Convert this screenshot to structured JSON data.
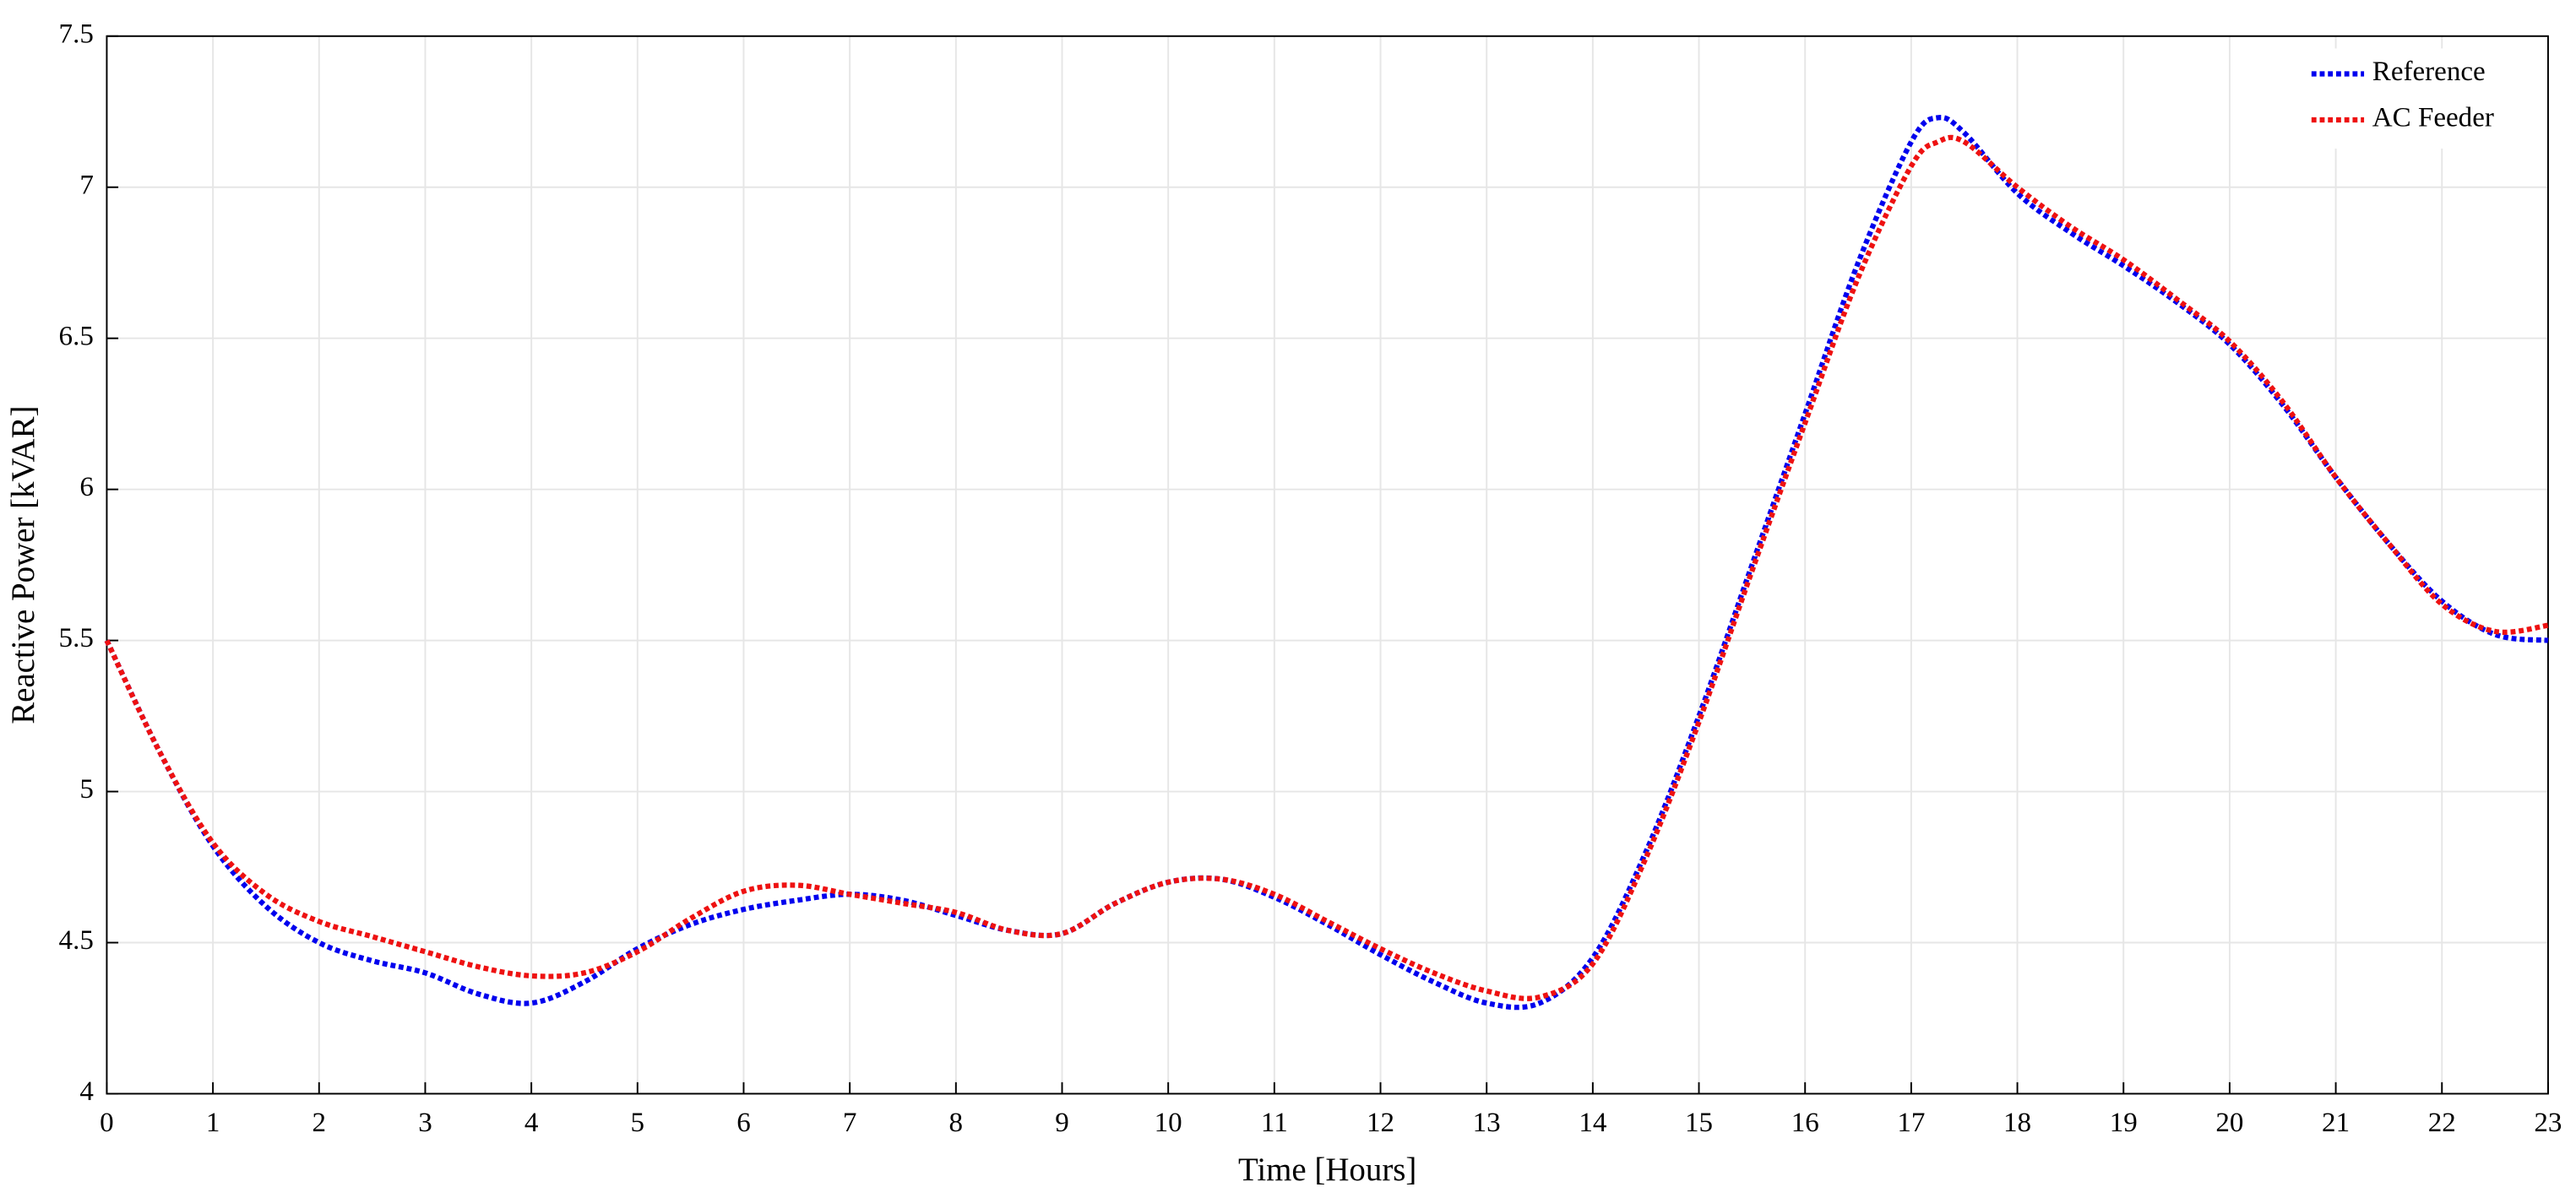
{
  "chart_data": {
    "type": "line",
    "xlabel": "Time [Hours]",
    "ylabel": "Reactive Power [kVAR]",
    "x": [
      0,
      0.5,
      1,
      1.5,
      2,
      2.5,
      3,
      3.5,
      4,
      4.5,
      5,
      5.5,
      6,
      6.5,
      7,
      7.5,
      8,
      8.5,
      9,
      9.5,
      10,
      10.5,
      11,
      11.5,
      12,
      12.5,
      13,
      13.5,
      14,
      14.5,
      15,
      15.5,
      16,
      16.5,
      17,
      17.25,
      17.5,
      18,
      18.5,
      19,
      19.5,
      20,
      20.5,
      21,
      21.5,
      22,
      22.5,
      23
    ],
    "series": [
      {
        "name": "Reference",
        "color": "#0000ee",
        "values": [
          5.5,
          5.13,
          4.82,
          4.62,
          4.5,
          4.44,
          4.4,
          4.33,
          4.3,
          4.37,
          4.48,
          4.56,
          4.61,
          4.64,
          4.66,
          4.64,
          4.59,
          4.54,
          4.53,
          4.63,
          4.7,
          4.71,
          4.65,
          4.56,
          4.46,
          4.37,
          4.3,
          4.3,
          4.45,
          4.8,
          5.25,
          5.75,
          6.25,
          6.75,
          7.15,
          7.23,
          7.18,
          6.98,
          6.85,
          6.74,
          6.62,
          6.48,
          6.28,
          6.04,
          5.82,
          5.63,
          5.52,
          5.5
        ]
      },
      {
        "name": "AC Feeder",
        "color": "#ee1111",
        "values": [
          5.5,
          5.13,
          4.83,
          4.66,
          4.57,
          4.52,
          4.47,
          4.42,
          4.39,
          4.4,
          4.47,
          4.58,
          4.67,
          4.69,
          4.66,
          4.63,
          4.6,
          4.54,
          4.53,
          4.63,
          4.7,
          4.71,
          4.66,
          4.57,
          4.48,
          4.4,
          4.34,
          4.32,
          4.43,
          4.78,
          5.23,
          5.73,
          6.22,
          6.7,
          7.07,
          7.15,
          7.15,
          7.0,
          6.87,
          6.76,
          6.63,
          6.49,
          6.29,
          6.04,
          5.82,
          5.62,
          5.53,
          5.55
        ]
      }
    ],
    "xlim": [
      0,
      23
    ],
    "xticks": [
      0,
      1,
      2,
      3,
      4,
      5,
      6,
      7,
      8,
      9,
      10,
      11,
      12,
      13,
      14,
      15,
      16,
      17,
      18,
      19,
      20,
      21,
      22,
      23
    ],
    "ylim": [
      4,
      7.5
    ],
    "yticks": [
      4,
      4.5,
      5,
      5.5,
      6,
      6.5,
      7,
      7.5
    ],
    "grid": true,
    "legend": "upper right"
  }
}
